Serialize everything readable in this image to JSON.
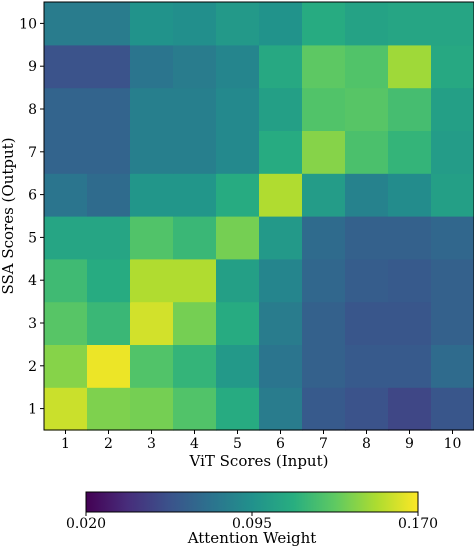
{
  "chart_data": {
    "type": "heatmap",
    "title": "",
    "xlabel": "ViT Scores (Input)",
    "ylabel": "SSA Scores (Output)",
    "x_categories": [
      "1",
      "2",
      "3",
      "4",
      "5",
      "6",
      "7",
      "8",
      "9",
      "10"
    ],
    "y_categories": [
      "1",
      "2",
      "3",
      "4",
      "5",
      "6",
      "7",
      "8",
      "9",
      "10"
    ],
    "values": [
      [
        0.158,
        0.14,
        0.138,
        0.128,
        0.112,
        0.082,
        0.062,
        0.058,
        0.052,
        0.06
      ],
      [
        0.142,
        0.166,
        0.128,
        0.118,
        0.1,
        0.078,
        0.066,
        0.062,
        0.062,
        0.072
      ],
      [
        0.13,
        0.12,
        0.16,
        0.138,
        0.112,
        0.082,
        0.066,
        0.06,
        0.06,
        0.066
      ],
      [
        0.122,
        0.112,
        0.152,
        0.152,
        0.104,
        0.088,
        0.07,
        0.064,
        0.062,
        0.066
      ],
      [
        0.108,
        0.108,
        0.128,
        0.12,
        0.138,
        0.1,
        0.072,
        0.066,
        0.066,
        0.07
      ],
      [
        0.078,
        0.072,
        0.098,
        0.098,
        0.112,
        0.152,
        0.102,
        0.086,
        0.092,
        0.104
      ],
      [
        0.068,
        0.068,
        0.084,
        0.084,
        0.09,
        0.112,
        0.142,
        0.126,
        0.118,
        0.102
      ],
      [
        0.068,
        0.068,
        0.084,
        0.084,
        0.09,
        0.104,
        0.128,
        0.13,
        0.124,
        0.104
      ],
      [
        0.058,
        0.058,
        0.078,
        0.082,
        0.088,
        0.11,
        0.132,
        0.128,
        0.148,
        0.11
      ],
      [
        0.082,
        0.082,
        0.096,
        0.094,
        0.1,
        0.096,
        0.112,
        0.106,
        0.108,
        0.108
      ]
    ],
    "colormap": "viridis",
    "colorbar": {
      "label": "Attention Weight",
      "min": 0.02,
      "max": 0.17,
      "ticks": [
        0.02,
        0.095,
        0.17
      ],
      "tick_labels": [
        "0.020",
        "0.095",
        "0.170"
      ]
    }
  }
}
